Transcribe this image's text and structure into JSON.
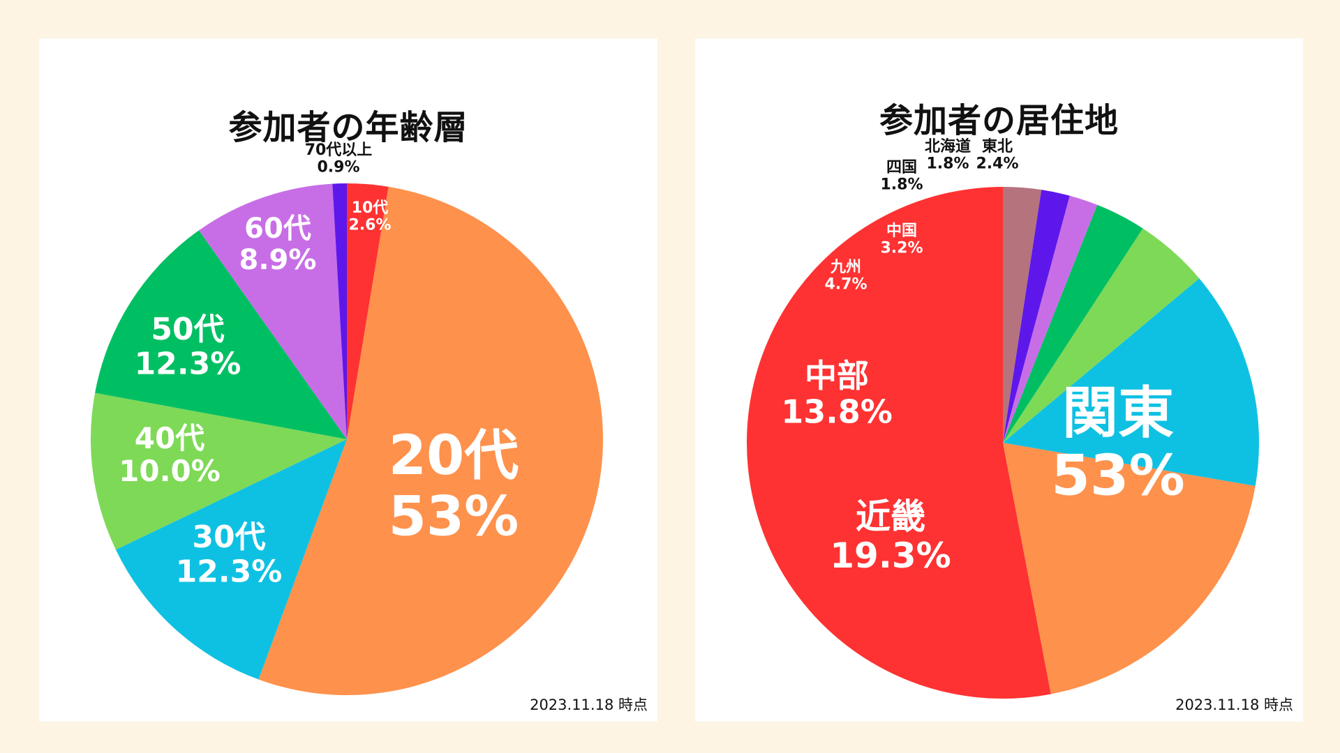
{
  "chart_data": [
    {
      "type": "pie",
      "title": "参加者の年齢層",
      "as_of": "2023.11.18 時点",
      "slices": [
        {
          "category": "10代",
          "value": 2.6,
          "label": "2.6%",
          "color": "#fe3232"
        },
        {
          "category": "20代",
          "value": 53,
          "label": "53%",
          "color": "#fe914c"
        },
        {
          "category": "30代",
          "value": 12.3,
          "label": "12.3%",
          "color": "#0ec1e3"
        },
        {
          "category": "40代",
          "value": 10.0,
          "label": "10.0%",
          "color": "#7ed957"
        },
        {
          "category": "50代",
          "value": 12.3,
          "label": "12.3%",
          "color": "#00bf63"
        },
        {
          "category": "60代",
          "value": 8.9,
          "label": "8.9%",
          "color": "#c76ee6"
        },
        {
          "category": "70代以上",
          "value": 0.9,
          "label": "0.9%",
          "color": "#5e17eb"
        }
      ]
    },
    {
      "type": "pie",
      "title": "参加者の居住地",
      "as_of": "2023.11.18 時点",
      "slices": [
        {
          "category": "関東",
          "value": 53,
          "label": "53%",
          "color": "#fe3232"
        },
        {
          "category": "近畿",
          "value": 19.3,
          "label": "19.3%",
          "color": "#fe914c"
        },
        {
          "category": "中部",
          "value": 13.8,
          "label": "13.8%",
          "color": "#0ec1e3"
        },
        {
          "category": "九州",
          "value": 4.7,
          "label": "4.7%",
          "color": "#7ed957"
        },
        {
          "category": "中国",
          "value": 3.2,
          "label": "3.2%",
          "color": "#00bf63"
        },
        {
          "category": "四国",
          "value": 1.8,
          "label": "1.8%",
          "color": "#c76ee6"
        },
        {
          "category": "北海道",
          "value": 1.8,
          "label": "1.8%",
          "color": "#5e17eb"
        },
        {
          "category": "東北",
          "value": 2.4,
          "label": "2.4%",
          "color": "#b5737d"
        }
      ]
    }
  ]
}
